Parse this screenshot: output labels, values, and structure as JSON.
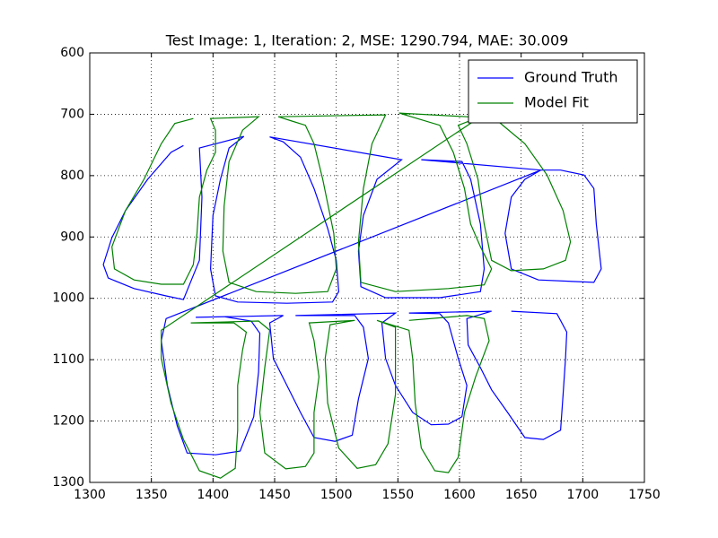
{
  "chart_data": {
    "type": "line",
    "title": "Test Image: 1, Iteration: 2, MSE: 1290.794, MAE: 30.009",
    "xlim": [
      1300,
      1750
    ],
    "xticks": [
      1300,
      1350,
      1400,
      1450,
      1500,
      1550,
      1600,
      1650,
      1700,
      1750
    ],
    "ylim": [
      1300,
      600
    ],
    "yticks": [
      600,
      700,
      800,
      900,
      1000,
      1100,
      1200,
      1300
    ],
    "grid": true,
    "legend": "upper right",
    "series": [
      {
        "name": "Ground Truth",
        "color": "#0000ff",
        "x": [
          1376,
          1366,
          1347,
          1329,
          1318,
          1311,
          1315,
          1336,
          1362,
          1376,
          1389,
          1391,
          1389,
          1425,
          1413,
          1406,
          1400,
          1398,
          1402,
          1420,
          1460,
          1497,
          1502,
          1500,
          1493,
          1482,
          1471,
          1457,
          1446,
          1553,
          1533,
          1522,
          1518,
          1520,
          1540,
          1584,
          1617,
          1620,
          1617,
          1609,
          1602,
          1569,
          1666,
          1682,
          1701,
          1709,
          1711,
          1715,
          1709,
          1664,
          1642,
          1637,
          1642,
          1653,
          1666,
          1362,
          1358,
          1363,
          1371,
          1379,
          1402,
          1422,
          1433,
          1437,
          1438,
          1431,
          1409,
          1386,
          1457,
          1446,
          1449,
          1460,
          1471,
          1482,
          1499,
          1513,
          1518,
          1526,
          1522,
          1515,
          1467,
          1548,
          1537,
          1540,
          1548,
          1562,
          1577,
          1591,
          1602,
          1606,
          1599,
          1591,
          1584,
          1559,
          1626,
          1606,
          1607,
          1617,
          1626,
          1639,
          1653,
          1668,
          1682,
          1684,
          1686,
          1687,
          1679,
          1642
        ],
        "values": [
          751,
          762,
          806,
          857,
          901,
          945,
          967,
          984,
          996,
          1002,
          938,
          835,
          755,
          736,
          755,
          806,
          865,
          952,
          996,
          1006,
          1008,
          1006,
          989,
          938,
          886,
          821,
          770,
          745,
          737,
          774,
          806,
          865,
          923,
          981,
          999,
          999,
          989,
          952,
          879,
          806,
          777,
          774,
          791,
          791,
          799,
          821,
          879,
          952,
          974,
          970,
          952,
          894,
          835,
          806,
          791,
          1033,
          1069,
          1142,
          1208,
          1252,
          1255,
          1249,
          1193,
          1120,
          1057,
          1037,
          1030,
          1031,
          1028,
          1040,
          1098,
          1142,
          1186,
          1227,
          1233,
          1223,
          1164,
          1098,
          1047,
          1028,
          1028,
          1024,
          1040,
          1098,
          1142,
          1186,
          1206,
          1205,
          1193,
          1142,
          1098,
          1040,
          1025,
          1024,
          1021,
          1033,
          1076,
          1113,
          1149,
          1186,
          1227,
          1230,
          1215,
          1157,
          1098,
          1055,
          1025,
          1021
        ]
      },
      {
        "name": "Model Fit",
        "color": "#008000",
        "x": [
          1384,
          1369,
          1358,
          1344,
          1329,
          1318,
          1320,
          1336,
          1358,
          1376,
          1384,
          1387,
          1389,
          1395,
          1402,
          1402,
          1398,
          1437,
          1424,
          1413,
          1409,
          1408,
          1413,
          1435,
          1467,
          1493,
          1500,
          1498,
          1489,
          1482,
          1475,
          1464,
          1453,
          1540,
          1529,
          1522,
          1518,
          1520,
          1548,
          1591,
          1620,
          1626,
          1617,
          1609,
          1604,
          1595,
          1584,
          1551,
          1606,
          1631,
          1653,
          1671,
          1684,
          1690,
          1686,
          1668,
          1642,
          1626,
          1620,
          1615,
          1606,
          1599,
          1617,
          1358,
          1358,
          1366,
          1376,
          1389,
          1406,
          1418,
          1420,
          1420,
          1424,
          1427,
          1417,
          1382,
          1437,
          1446,
          1442,
          1438,
          1442,
          1459,
          1475,
          1482,
          1482,
          1486,
          1482,
          1478,
          1515,
          1495,
          1491,
          1493,
          1502,
          1517,
          1532,
          1542,
          1548,
          1548,
          1548,
          1533,
          1559,
          1562,
          1564,
          1569,
          1580,
          1591,
          1599,
          1604,
          1613,
          1624,
          1620,
          1606,
          1559
        ],
        "values": [
          707,
          715,
          748,
          806,
          857,
          916,
          952,
          970,
          977,
          977,
          945,
          894,
          835,
          791,
          762,
          726,
          707,
          704,
          726,
          777,
          850,
          923,
          974,
          989,
          992,
          989,
          952,
          894,
          806,
          748,
          718,
          711,
          704,
          701,
          748,
          821,
          908,
          974,
          989,
          984,
          978,
          952,
          916,
          879,
          821,
          762,
          718,
          698,
          704,
          711,
          748,
          799,
          857,
          908,
          938,
          952,
          955,
          938,
          879,
          806,
          748,
          718,
          704,
          1052,
          1098,
          1171,
          1230,
          1281,
          1293,
          1277,
          1215,
          1142,
          1084,
          1055,
          1040,
          1040,
          1037,
          1052,
          1113,
          1186,
          1252,
          1278,
          1274,
          1252,
          1186,
          1128,
          1069,
          1040,
          1036,
          1043,
          1098,
          1171,
          1244,
          1277,
          1271,
          1237,
          1157,
          1084,
          1047,
          1036,
          1052,
          1098,
          1171,
          1244,
          1281,
          1284,
          1259,
          1186,
          1128,
          1069,
          1033,
          1028,
          1036
        ]
      }
    ]
  }
}
